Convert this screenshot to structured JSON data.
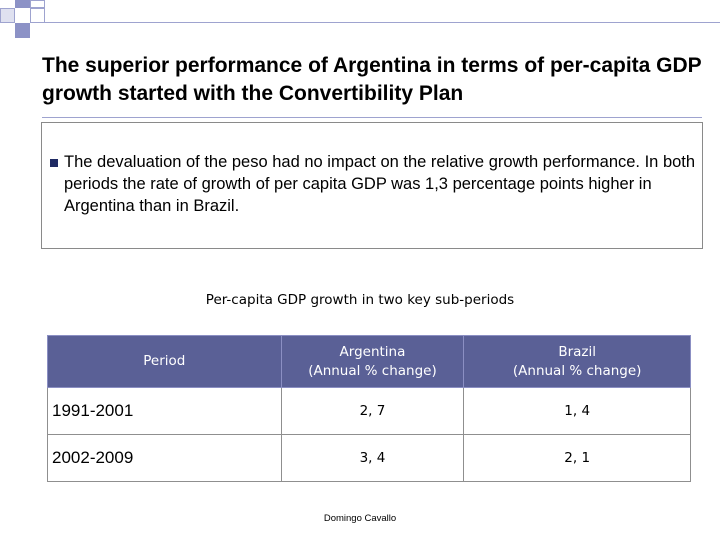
{
  "slide": {
    "title": "The superior performance of Argentina in terms of per-capita GDP growth started with the Convertibility Plan",
    "bullet_text": "The devaluation of the peso had no impact on the relative growth performance. In both periods the rate of growth of per capita GDP was 1,3 percentage points higher in Argentina than in Brazil.",
    "table_caption": "Per-capita GDP growth  in two key sub-periods",
    "footer": "Domingo Cavallo"
  },
  "table": {
    "headers": {
      "period": "Period",
      "argentina": "Argentina",
      "argentina_sub": "(Annual % change)",
      "brazil": "Brazil",
      "brazil_sub": "(Annual % change)"
    },
    "rows": [
      {
        "period": "1991-2001",
        "argentina": "2, 7",
        "brazil": "1, 4"
      },
      {
        "period": "2002-2009",
        "argentina": "3, 4",
        "brazil": "2, 1"
      }
    ]
  },
  "colors": {
    "accent": "#5a6096",
    "corner_square": "#8c92c6",
    "bullet": "#1f2a63"
  }
}
